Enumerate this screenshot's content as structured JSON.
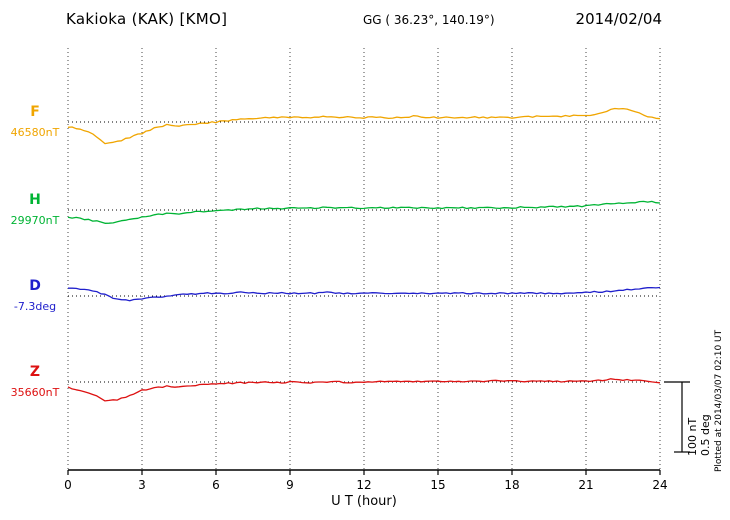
{
  "header": {
    "title": "Kakioka (KAK)  [KMO]",
    "coords": "GG ( 36.23°, 140.19°)",
    "date": "2014/02/04"
  },
  "footer": {
    "xlabel": "U T (hour)"
  },
  "scale_bar": {
    "nt": "100 nT",
    "deg": "0.5 deg"
  },
  "plotted_at": "Plotted at 2014/03/07 02:10 UT",
  "colors": {
    "F": "#f0a500",
    "H": "#00b434",
    "D": "#2020cc",
    "Z": "#dd1111",
    "axis": "#000000",
    "grid": "#444444"
  },
  "chart_data": {
    "type": "line",
    "title": "Kakioka (KAK) [KMO] magnetogram 2014/02/04",
    "xlabel": "U T (hour)",
    "xlim": [
      0,
      24
    ],
    "x_ticks": [
      0,
      3,
      6,
      9,
      12,
      15,
      18,
      21,
      24
    ],
    "x_step_hours": 0.5,
    "grid": "vertical-dotted",
    "legend_position": "left-of-traces",
    "scale_reference": {
      "nT_per_bar": 100,
      "deg_per_bar": 0.5
    },
    "series": [
      {
        "key": "F",
        "label": "F",
        "baseline_label": "46580nT",
        "baseline_value": 46580,
        "unit": "nT",
        "offsets": [
          -7,
          -10,
          -16,
          -30,
          -28,
          -22,
          -16,
          -9,
          -4,
          -6,
          -4,
          -2,
          0,
          2,
          4,
          5,
          6,
          6,
          7,
          6,
          7,
          8,
          7,
          7,
          6,
          7,
          6,
          7,
          8,
          7,
          6,
          7,
          6,
          7,
          6,
          7,
          6,
          7,
          8,
          8,
          8,
          9,
          9,
          12,
          18,
          20,
          14,
          8,
          4
        ]
      },
      {
        "key": "H",
        "label": "H",
        "baseline_label": "29970nT",
        "baseline_value": 29970,
        "unit": "nT",
        "offsets": [
          -10,
          -12,
          -15,
          -19,
          -17,
          -13,
          -10,
          -7,
          -5,
          -6,
          -3,
          -2,
          -1,
          0,
          1,
          2,
          2,
          2,
          3,
          3,
          3,
          4,
          3,
          3,
          3,
          3,
          3,
          3,
          3,
          3,
          3,
          3,
          3,
          3,
          3,
          3,
          3,
          4,
          4,
          5,
          5,
          5,
          6,
          7,
          9,
          10,
          11,
          12,
          11
        ]
      },
      {
        "key": "D",
        "label": "D",
        "baseline_label": "-7.3deg",
        "baseline_value": -7.3,
        "unit": "deg",
        "offsets": [
          0.055,
          0.05,
          0.04,
          0.01,
          -0.025,
          -0.03,
          -0.02,
          -0.01,
          0,
          0.01,
          0.015,
          0.02,
          0.02,
          0.02,
          0.025,
          0.02,
          0.02,
          0.02,
          0.02,
          0.02,
          0.02,
          0.025,
          0.02,
          0.02,
          0.02,
          0.02,
          0.02,
          0.02,
          0.02,
          0.02,
          0.02,
          0.02,
          0.02,
          0.02,
          0.015,
          0.02,
          0.02,
          0.02,
          0.02,
          0.02,
          0.02,
          0.02,
          0.025,
          0.03,
          0.035,
          0.04,
          0.05,
          0.055,
          0.06
        ]
      },
      {
        "key": "Z",
        "label": "Z",
        "baseline_label": "35660nT",
        "baseline_value": 35660,
        "unit": "nT",
        "offsets": [
          -8,
          -12,
          -18,
          -26,
          -25,
          -20,
          -12,
          -8,
          -6,
          -7,
          -5,
          -4,
          -3,
          -2,
          -1,
          -1,
          0,
          -1,
          0,
          0,
          -1,
          0,
          0,
          -1,
          0,
          0,
          1,
          1,
          1,
          1,
          1,
          1,
          0,
          1,
          1,
          2,
          1,
          1,
          1,
          1,
          1,
          1,
          1,
          2,
          4,
          3,
          2,
          1,
          -1
        ]
      }
    ]
  }
}
